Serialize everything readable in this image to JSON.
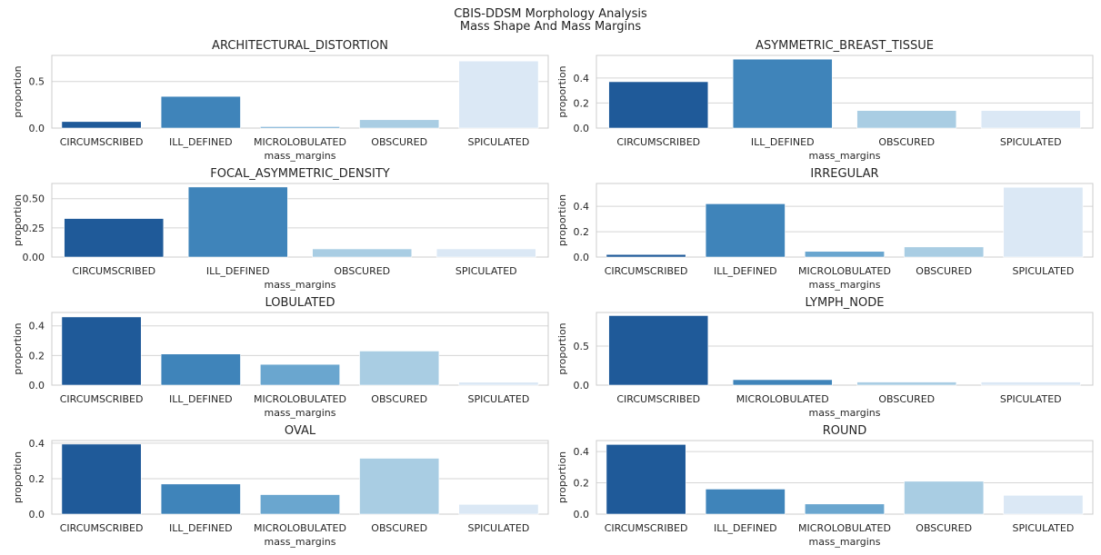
{
  "figure": {
    "title_line1": "CBIS-DDSM Morphology Analysis",
    "title_line2": "Mass Shape And Mass Margins"
  },
  "palette": [
    "#1f5a99",
    "#3f84ba",
    "#6aa6cf",
    "#a9cde3",
    "#dbe8f5"
  ],
  "chart_data": [
    {
      "type": "bar",
      "title": "ARCHITECTURAL_DISTORTION",
      "xlabel": "mass_margins",
      "ylabel": "proportion",
      "categories": [
        "CIRCUMSCRIBED",
        "ILL_DEFINED",
        "MICROLOBULATED",
        "OBSCURED",
        "SPICULATED"
      ],
      "values": [
        0.07,
        0.34,
        0.015,
        0.09,
        0.72
      ],
      "color_index": [
        0,
        1,
        2,
        3,
        4
      ],
      "ylim": [
        0,
        0.78
      ],
      "yticks": [
        0.0,
        0.5
      ],
      "ytick_labels": [
        "0.0",
        "0.5"
      ],
      "grid": true
    },
    {
      "type": "bar",
      "title": "ASYMMETRIC_BREAST_TISSUE",
      "xlabel": "mass_margins",
      "ylabel": "proportion",
      "categories": [
        "CIRCUMSCRIBED",
        "ILL_DEFINED",
        "OBSCURED",
        "SPICULATED"
      ],
      "values": [
        0.37,
        0.55,
        0.14,
        0.14
      ],
      "color_index": [
        0,
        1,
        3,
        4
      ],
      "ylim": [
        0,
        0.58
      ],
      "yticks": [
        0.0,
        0.2,
        0.4
      ],
      "ytick_labels": [
        "0.0",
        "0.2",
        "0.4"
      ],
      "grid": true
    },
    {
      "type": "bar",
      "title": "FOCAL_ASYMMETRIC_DENSITY",
      "xlabel": "mass_margins",
      "ylabel": "proportion",
      "categories": [
        "CIRCUMSCRIBED",
        "ILL_DEFINED",
        "OBSCURED",
        "SPICULATED"
      ],
      "values": [
        0.33,
        0.6,
        0.07,
        0.07
      ],
      "color_index": [
        0,
        1,
        3,
        4
      ],
      "ylim": [
        0,
        0.63
      ],
      "yticks": [
        0.0,
        0.25,
        0.5
      ],
      "ytick_labels": [
        "0.00",
        "0.25",
        "0.50"
      ],
      "grid": true
    },
    {
      "type": "bar",
      "title": "IRREGULAR",
      "xlabel": "mass_margins",
      "ylabel": "proportion",
      "categories": [
        "CIRCUMSCRIBED",
        "ILL_DEFINED",
        "MICROLOBULATED",
        "OBSCURED",
        "SPICULATED"
      ],
      "values": [
        0.02,
        0.42,
        0.045,
        0.08,
        0.55
      ],
      "color_index": [
        0,
        1,
        2,
        3,
        4
      ],
      "ylim": [
        0,
        0.58
      ],
      "yticks": [
        0.0,
        0.2,
        0.4
      ],
      "ytick_labels": [
        "0.0",
        "0.2",
        "0.4"
      ],
      "grid": true
    },
    {
      "type": "bar",
      "title": "LOBULATED",
      "xlabel": "mass_margins",
      "ylabel": "proportion",
      "categories": [
        "CIRCUMSCRIBED",
        "ILL_DEFINED",
        "MICROLOBULATED",
        "OBSCURED",
        "SPICULATED"
      ],
      "values": [
        0.46,
        0.21,
        0.14,
        0.23,
        0.02
      ],
      "color_index": [
        0,
        1,
        2,
        3,
        4
      ],
      "ylim": [
        0,
        0.49
      ],
      "yticks": [
        0.0,
        0.2,
        0.4
      ],
      "ytick_labels": [
        "0.0",
        "0.2",
        "0.4"
      ],
      "grid": true
    },
    {
      "type": "bar",
      "title": "LYMPH_NODE",
      "xlabel": "mass_margins",
      "ylabel": "proportion",
      "categories": [
        "CIRCUMSCRIBED",
        "MICROLOBULATED",
        "OBSCURED",
        "SPICULATED"
      ],
      "values": [
        0.89,
        0.07,
        0.04,
        0.04
      ],
      "color_index": [
        0,
        1,
        3,
        4
      ],
      "ylim": [
        0,
        0.93
      ],
      "yticks": [
        0.0,
        0.5
      ],
      "ytick_labels": [
        "0.0",
        "0.5"
      ],
      "grid": true
    },
    {
      "type": "bar",
      "title": "OVAL",
      "xlabel": "mass_margins",
      "ylabel": "proportion",
      "categories": [
        "CIRCUMSCRIBED",
        "ILL_DEFINED",
        "MICROLOBULATED",
        "OBSCURED",
        "SPICULATED"
      ],
      "values": [
        0.395,
        0.17,
        0.11,
        0.315,
        0.055
      ],
      "color_index": [
        0,
        1,
        2,
        3,
        4
      ],
      "ylim": [
        0,
        0.415
      ],
      "yticks": [
        0.0,
        0.2,
        0.4
      ],
      "ytick_labels": [
        "0.0",
        "0.2",
        "0.4"
      ],
      "grid": true
    },
    {
      "type": "bar",
      "title": "ROUND",
      "xlabel": "mass_margins",
      "ylabel": "proportion",
      "categories": [
        "CIRCUMSCRIBED",
        "ILL_DEFINED",
        "MICROLOBULATED",
        "OBSCURED",
        "SPICULATED"
      ],
      "values": [
        0.445,
        0.16,
        0.065,
        0.21,
        0.12
      ],
      "color_index": [
        0,
        1,
        2,
        3,
        4
      ],
      "ylim": [
        0,
        0.47
      ],
      "yticks": [
        0.0,
        0.2,
        0.4
      ],
      "ytick_labels": [
        "0.0",
        "0.2",
        "0.4"
      ],
      "grid": true
    }
  ]
}
